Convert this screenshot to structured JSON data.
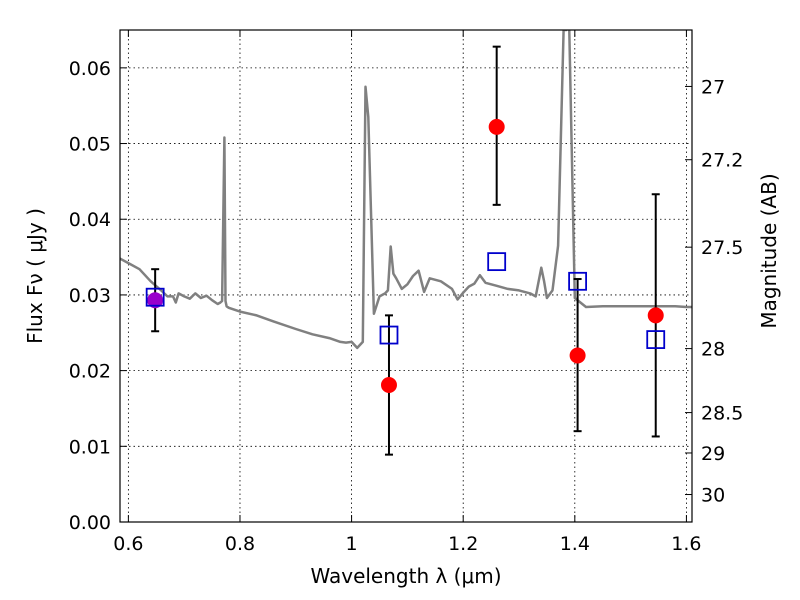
{
  "chart_data": {
    "type": "scatter",
    "title": "",
    "xlabel": "Wavelength  λ (μm)",
    "ylabel": "Flux  Fν  ( μJy )",
    "y2label": "Magnitude (AB)",
    "xlim": [
      0.585,
      1.61
    ],
    "ylim": [
      0.0,
      0.065
    ],
    "grid": true,
    "x_ticks": [
      {
        "value": 0.6,
        "label": "0.6"
      },
      {
        "value": 0.8,
        "label": "0.8"
      },
      {
        "value": 1.0,
        "label": "1"
      },
      {
        "value": 1.2,
        "label": "1.2"
      },
      {
        "value": 1.4,
        "label": "1.4"
      },
      {
        "value": 1.6,
        "label": "1.6"
      }
    ],
    "y_ticks": [
      {
        "value": 0.0,
        "label": "0.00"
      },
      {
        "value": 0.01,
        "label": "0.01"
      },
      {
        "value": 0.02,
        "label": "0.02"
      },
      {
        "value": 0.03,
        "label": "0.03"
      },
      {
        "value": 0.04,
        "label": "0.04"
      },
      {
        "value": 0.05,
        "label": "0.05"
      },
      {
        "value": 0.06,
        "label": "0.06"
      }
    ],
    "y2_ticks": [
      {
        "value": 27,
        "label": "27"
      },
      {
        "value": 27.2,
        "label": "27.2"
      },
      {
        "value": 27.5,
        "label": "27.5"
      },
      {
        "value": 28,
        "label": "28"
      },
      {
        "value": 28.5,
        "label": "28.5"
      },
      {
        "value": 29,
        "label": "29"
      },
      {
        "value": 30,
        "label": "30"
      }
    ],
    "series": [
      {
        "kind": "line",
        "color": "#808080",
        "x": [
          0.585,
          0.6,
          0.62,
          0.64,
          0.66,
          0.67,
          0.68,
          0.685,
          0.69,
          0.7,
          0.71,
          0.72,
          0.73,
          0.74,
          0.75,
          0.76,
          0.765,
          0.768,
          0.772,
          0.774,
          0.776,
          0.78,
          0.8,
          0.83,
          0.86,
          0.9,
          0.93,
          0.96,
          0.98,
          0.99,
          1.0,
          1.01,
          1.02,
          1.025,
          1.03,
          1.04,
          1.05,
          1.06,
          1.065,
          1.07,
          1.075,
          1.08,
          1.09,
          1.1,
          1.11,
          1.12,
          1.13,
          1.14,
          1.16,
          1.18,
          1.19,
          1.2,
          1.21,
          1.22,
          1.23,
          1.24,
          1.25,
          1.26,
          1.28,
          1.3,
          1.32,
          1.33,
          1.34,
          1.345,
          1.35,
          1.36,
          1.37,
          1.38,
          1.385,
          1.39,
          1.4,
          1.42,
          1.45,
          1.5,
          1.55,
          1.58,
          1.6,
          1.61
        ],
        "y": [
          0.0348,
          0.0342,
          0.0334,
          0.0318,
          0.0305,
          0.0298,
          0.0298,
          0.029,
          0.0302,
          0.0298,
          0.0295,
          0.0302,
          0.0296,
          0.0299,
          0.0293,
          0.0288,
          0.029,
          0.0292,
          0.0508,
          0.0292,
          0.0285,
          0.0283,
          0.0278,
          0.0273,
          0.0265,
          0.0255,
          0.0248,
          0.0243,
          0.0238,
          0.0237,
          0.0238,
          0.023,
          0.0238,
          0.0575,
          0.0535,
          0.0275,
          0.0298,
          0.0302,
          0.0306,
          0.0364,
          0.0328,
          0.0322,
          0.0308,
          0.0314,
          0.0325,
          0.0332,
          0.0304,
          0.0322,
          0.0318,
          0.0308,
          0.0294,
          0.0303,
          0.0311,
          0.0315,
          0.0326,
          0.0316,
          0.0314,
          0.0312,
          0.0308,
          0.0306,
          0.0302,
          0.0298,
          0.0336,
          0.0318,
          0.0296,
          0.0306,
          0.0365,
          0.065,
          0.065,
          0.0655,
          0.0296,
          0.0284,
          0.0285,
          0.0285,
          0.0285,
          0.0285,
          0.0284,
          0.0284
        ]
      },
      {
        "kind": "points",
        "marker": "circle",
        "color": "#ff0000",
        "x": [
          1.067,
          1.26,
          1.405,
          1.545
        ],
        "y": [
          0.0181,
          0.0522,
          0.022,
          0.0273
        ],
        "yerr_low": [
          0.0092,
          0.0103,
          0.01,
          0.016
        ],
        "yerr_high": [
          0.0092,
          0.0106,
          0.0101,
          0.016
        ]
      },
      {
        "kind": "points",
        "marker": "circle",
        "color": "#9900cc",
        "x": [
          0.648
        ],
        "y": [
          0.0293
        ],
        "yerr_low": [
          0.0041
        ],
        "yerr_high": [
          0.0041
        ]
      },
      {
        "kind": "points",
        "marker": "open-square",
        "color": "#0000cc",
        "x": [
          0.648,
          1.067,
          1.26,
          1.405,
          1.545
        ],
        "y": [
          0.0297,
          0.0247,
          0.0344,
          0.0318,
          0.0241
        ]
      }
    ]
  }
}
